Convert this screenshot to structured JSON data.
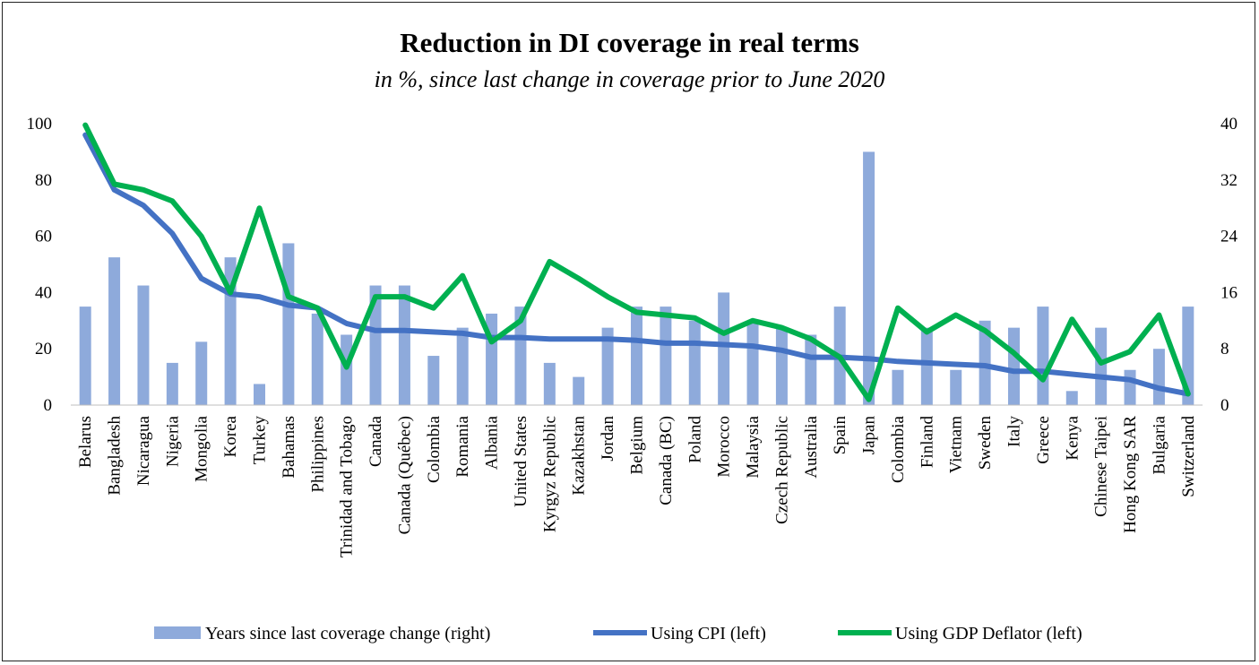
{
  "chart_data": {
    "type": "bar+line",
    "title": "Reduction in DI coverage in real terms",
    "subtitle": "in %, since last change in coverage prior to June 2020",
    "categories": [
      "Belarus",
      "Bangladesh",
      "Nicaragua",
      "Nigeria",
      "Mongolia",
      "Korea",
      "Turkey",
      "Bahamas",
      "Philippines",
      "Trinidad and Tobago",
      "Canada",
      "Canada (Québec)",
      "Colombia",
      "Romania",
      "Albania",
      "United States",
      "Kyrgyz Republic",
      "Kazakhstan",
      "Jordan",
      "Belgium",
      "Canada (BC)",
      "Poland",
      "Morocco",
      "Malaysia",
      "Czech Republic",
      "Australia",
      "Spain",
      "Japan",
      "Colombia",
      "Finland",
      "Vietnam",
      "Sweden",
      "Italy",
      "Greece",
      "Kenya",
      "Chinese Taipei",
      "Hong Kong SAR",
      "Bulgaria",
      "Switzerland"
    ],
    "left_axis": {
      "min": 0,
      "max": 100,
      "ticks": [
        "0",
        "20",
        "40",
        "60",
        "80",
        "100"
      ]
    },
    "right_axis": {
      "min": 0,
      "max": 40,
      "ticks": [
        "0",
        "8",
        "16",
        "24",
        "32",
        "40"
      ]
    },
    "series": [
      {
        "name": "Years since last coverage change (right)",
        "kind": "bar",
        "axis": "right",
        "color": "#8eaadb",
        "values": [
          14,
          21,
          17,
          6,
          9,
          21,
          3,
          23,
          13,
          10,
          17,
          17,
          7,
          11,
          13,
          14,
          6,
          4,
          11,
          14,
          14,
          12,
          16,
          12,
          11,
          10,
          14,
          36,
          5,
          11,
          5,
          12,
          11,
          14,
          2,
          11,
          5,
          8,
          14
        ]
      },
      {
        "name": "Using CPI (left)",
        "kind": "line",
        "axis": "left",
        "color": "#4472c4",
        "values": [
          96,
          76.5,
          71,
          61,
          45,
          39.5,
          38.5,
          35.5,
          34.5,
          29,
          26.5,
          26.5,
          26,
          25.5,
          24,
          24,
          23.5,
          23.5,
          23.5,
          23,
          22,
          22,
          21.5,
          21,
          19.5,
          17,
          17,
          16.5,
          15.5,
          15,
          14.5,
          14,
          12,
          12,
          11,
          10,
          9,
          6,
          4
        ]
      },
      {
        "name": "Using GDP Deflator (left)",
        "kind": "line",
        "axis": "left",
        "color": "#00b050",
        "values": [
          99.5,
          78.5,
          76.5,
          72.5,
          60,
          40,
          70,
          38.5,
          34.5,
          13.5,
          38.5,
          38.5,
          34.5,
          46,
          22.5,
          30,
          51,
          45,
          38.5,
          33,
          32,
          31,
          25.5,
          30,
          27.5,
          23.5,
          17,
          2,
          34.5,
          26,
          32,
          26.5,
          18.5,
          9,
          30.5,
          15,
          19,
          32,
          4
        ]
      }
    ],
    "legend": {
      "position": "bottom",
      "items": [
        "Years since last coverage change (right)",
        "Using CPI (left)",
        "Using GDP Deflator (left)"
      ]
    }
  }
}
